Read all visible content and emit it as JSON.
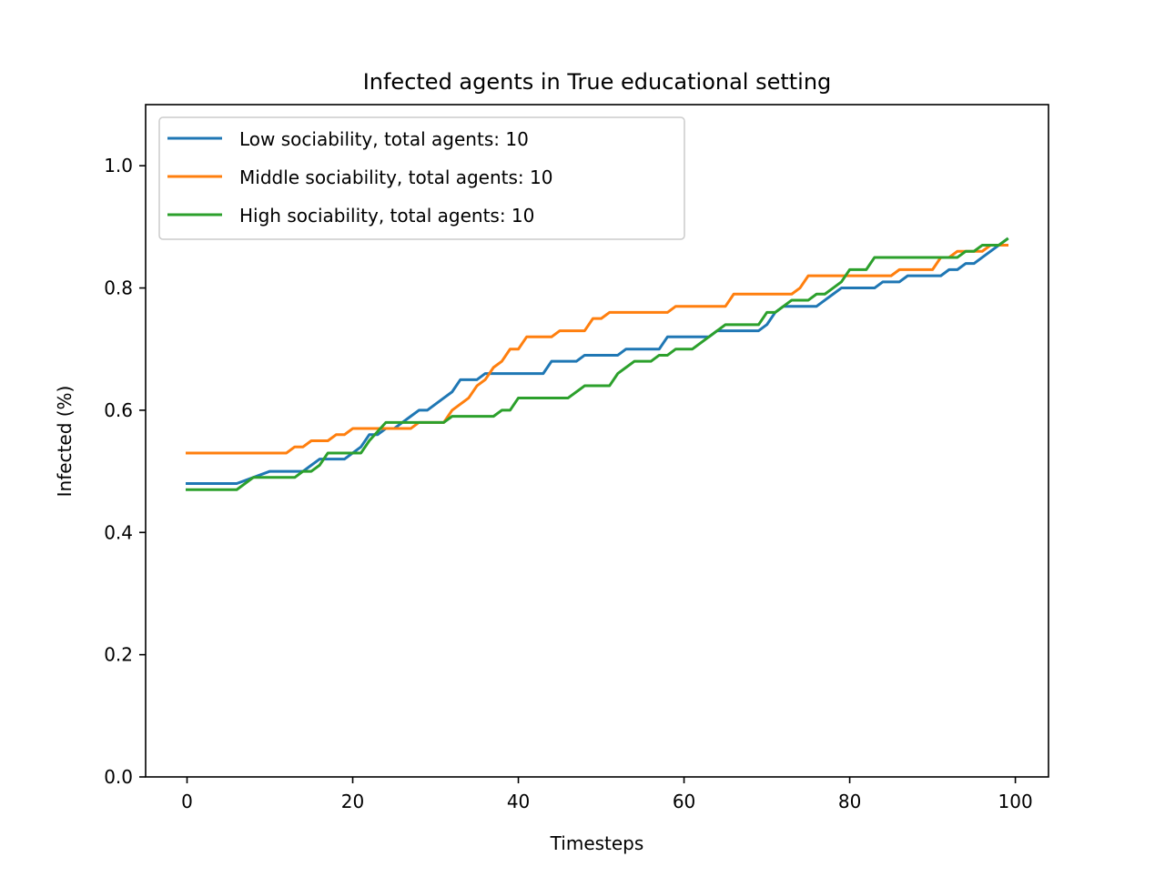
{
  "chart_data": {
    "type": "line",
    "title": "Infected agents in True educational setting",
    "xlabel": "Timesteps",
    "ylabel": "Infected (%)",
    "xlim": [
      -5,
      104
    ],
    "ylim": [
      0.0,
      1.1
    ],
    "xticks": [
      0,
      20,
      40,
      60,
      80,
      100
    ],
    "yticks": [
      0.0,
      0.2,
      0.4,
      0.6,
      0.8,
      1.0
    ],
    "xtick_labels": [
      "0",
      "20",
      "40",
      "60",
      "80",
      "100"
    ],
    "ytick_labels": [
      "0.0",
      "0.2",
      "0.4",
      "0.6",
      "0.8",
      "1.0"
    ],
    "grid": false,
    "legend_position": "upper-left",
    "series": [
      {
        "name": "Low sociability, total agents: 10",
        "color": "#1f77b4",
        "x": [
          0,
          6,
          8,
          10,
          11,
          13,
          14,
          15,
          16,
          18,
          19,
          20,
          21,
          22,
          23,
          24,
          25,
          26,
          27,
          28,
          29,
          30,
          31,
          32,
          33,
          35,
          36,
          37,
          43,
          44,
          47,
          48,
          52,
          53,
          57,
          58,
          62,
          63,
          64,
          65,
          69,
          70,
          71,
          72,
          75,
          76,
          77,
          78,
          79,
          80,
          83,
          84,
          85,
          86,
          87,
          90,
          91,
          92,
          93,
          94,
          95,
          96,
          99
        ],
        "y": [
          0.48,
          0.48,
          0.49,
          0.5,
          0.5,
          0.5,
          0.5,
          0.51,
          0.52,
          0.52,
          0.52,
          0.53,
          0.54,
          0.56,
          0.56,
          0.57,
          0.57,
          0.58,
          0.59,
          0.6,
          0.6,
          0.61,
          0.62,
          0.63,
          0.65,
          0.65,
          0.66,
          0.66,
          0.66,
          0.68,
          0.68,
          0.69,
          0.69,
          0.7,
          0.7,
          0.72,
          0.72,
          0.72,
          0.73,
          0.73,
          0.73,
          0.74,
          0.76,
          0.77,
          0.77,
          0.77,
          0.78,
          0.79,
          0.8,
          0.8,
          0.8,
          0.81,
          0.81,
          0.81,
          0.82,
          0.82,
          0.82,
          0.83,
          0.83,
          0.84,
          0.84,
          0.85,
          0.88
        ]
      },
      {
        "name": "Middle sociability, total agents: 10",
        "color": "#ff7f0e",
        "x": [
          0,
          12,
          13,
          14,
          15,
          17,
          18,
          19,
          20,
          21,
          23,
          24,
          27,
          28,
          29,
          31,
          32,
          33,
          34,
          35,
          36,
          37,
          38,
          39,
          40,
          41,
          42,
          44,
          45,
          47,
          48,
          49,
          50,
          51,
          52,
          56,
          58,
          59,
          60,
          64,
          65,
          66,
          70,
          73,
          74,
          75,
          80,
          84,
          85,
          86,
          88,
          90,
          91,
          92,
          93,
          94,
          95,
          96,
          97,
          99
        ],
        "y": [
          0.53,
          0.53,
          0.54,
          0.54,
          0.55,
          0.55,
          0.56,
          0.56,
          0.57,
          0.57,
          0.57,
          0.57,
          0.57,
          0.58,
          0.58,
          0.58,
          0.6,
          0.61,
          0.62,
          0.64,
          0.65,
          0.67,
          0.68,
          0.7,
          0.7,
          0.72,
          0.72,
          0.72,
          0.73,
          0.73,
          0.73,
          0.75,
          0.75,
          0.76,
          0.76,
          0.76,
          0.76,
          0.77,
          0.77,
          0.77,
          0.77,
          0.79,
          0.79,
          0.79,
          0.8,
          0.82,
          0.82,
          0.82,
          0.82,
          0.83,
          0.83,
          0.83,
          0.85,
          0.85,
          0.86,
          0.86,
          0.86,
          0.86,
          0.87,
          0.87
        ]
      },
      {
        "name": "High sociability, total agents: 10",
        "color": "#2ca02c",
        "x": [
          0,
          6,
          8,
          10,
          13,
          14,
          15,
          16,
          17,
          21,
          22,
          24,
          28,
          29,
          30,
          31,
          32,
          37,
          38,
          39,
          40,
          45,
          46,
          48,
          51,
          52,
          53,
          54,
          56,
          57,
          58,
          59,
          60,
          61,
          65,
          69,
          70,
          71,
          72,
          73,
          75,
          76,
          77,
          78,
          79,
          80,
          82,
          83,
          84,
          91,
          92,
          93,
          94,
          95,
          96,
          97,
          98,
          99
        ],
        "y": [
          0.47,
          0.47,
          0.49,
          0.49,
          0.49,
          0.5,
          0.5,
          0.51,
          0.53,
          0.53,
          0.55,
          0.58,
          0.58,
          0.58,
          0.58,
          0.58,
          0.59,
          0.59,
          0.6,
          0.6,
          0.62,
          0.62,
          0.62,
          0.64,
          0.64,
          0.66,
          0.67,
          0.68,
          0.68,
          0.69,
          0.69,
          0.7,
          0.7,
          0.7,
          0.74,
          0.74,
          0.76,
          0.76,
          0.77,
          0.78,
          0.78,
          0.79,
          0.79,
          0.8,
          0.81,
          0.83,
          0.83,
          0.85,
          0.85,
          0.85,
          0.85,
          0.85,
          0.86,
          0.86,
          0.87,
          0.87,
          0.87,
          0.88
        ]
      }
    ]
  }
}
